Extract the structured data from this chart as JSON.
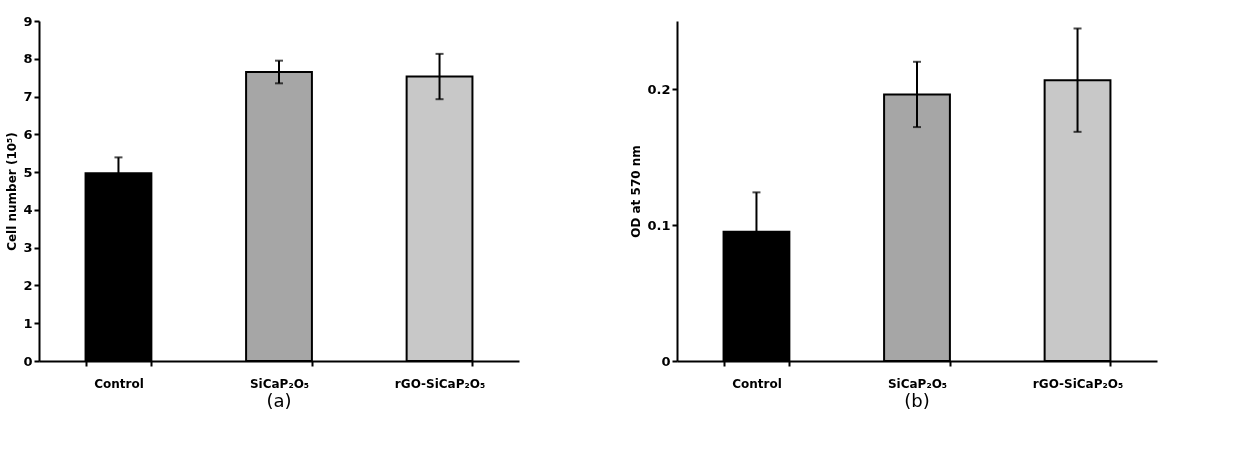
{
  "chart_data": [
    {
      "type": "bar",
      "title": "(a)",
      "ylabel": "Cell number (10⁵)",
      "categories": [
        "Control",
        "SiCaP₂O₅",
        "rGO-SiCaP₂O₅"
      ],
      "values": [
        4.97,
        7.65,
        7.53
      ],
      "errors": [
        0.42,
        0.3,
        0.6
      ],
      "colors": [
        "#000000",
        "#a6a6a6",
        "#c8c8c8"
      ],
      "ylim": [
        0,
        9
      ],
      "yticks": [
        0,
        1,
        2,
        3,
        4,
        5,
        6,
        7,
        8,
        9
      ],
      "grid": false
    },
    {
      "type": "bar",
      "title": "(b)",
      "ylabel": "OD at 570 nm",
      "categories": [
        "Control",
        "SiCaP₂O₅",
        "rGO-SiCaP₂O₅"
      ],
      "values": [
        0.095,
        0.196,
        0.2065
      ],
      "errors": [
        0.029,
        0.024,
        0.038
      ],
      "colors": [
        "#000000",
        "#a6a6a6",
        "#c8c8c8"
      ],
      "ylim": [
        0,
        0.25
      ],
      "yticks": [
        0,
        0.1,
        0.2
      ],
      "grid": false
    }
  ]
}
